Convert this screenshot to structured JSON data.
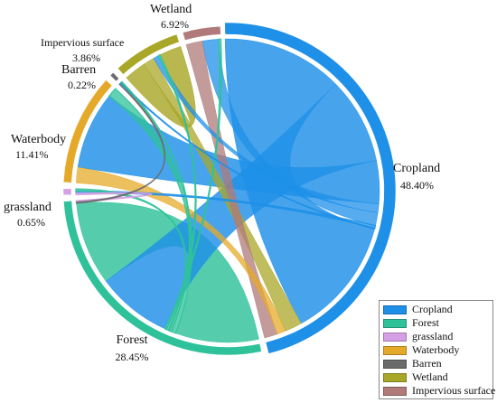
{
  "chart_data": {
    "type": "chord",
    "categories": [
      "Cropland",
      "Forest",
      "grassland",
      "Waterbody",
      "Barren",
      "Wetland",
      "Impervious surface"
    ],
    "shares_percent": [
      48.4,
      28.45,
      0.65,
      11.41,
      0.22,
      6.92,
      3.86
    ],
    "share_labels": [
      "48.40%",
      "28.45%",
      "0.65%",
      "11.41%",
      "0.22%",
      "6.92%",
      "3.86%"
    ],
    "colors": {
      "Cropland": "#1e90e8",
      "Forest": "#2fc29a",
      "grassland": "#d6a0e6",
      "Waterbody": "#e5a92a",
      "Barren": "#6b6b6b",
      "Wetland": "#a9a728",
      "Impervious surface": "#b07a7a"
    },
    "legend": {
      "position": "bottom-right",
      "entries": [
        "Cropland",
        "Forest",
        "grassland",
        "Waterbody",
        "Barren",
        "Wetland",
        "Impervious surface"
      ]
    },
    "flows": [
      {
        "from": "Cropland",
        "to": "Cropland",
        "weight": 14
      },
      {
        "from": "Cropland",
        "to": "Forest",
        "weight": 10
      },
      {
        "from": "Cropland",
        "to": "Waterbody",
        "weight": 5
      },
      {
        "from": "Cropland",
        "to": "Wetland",
        "weight": 1
      },
      {
        "from": "Cropland",
        "to": "Impervious surface",
        "weight": 1.5
      },
      {
        "from": "Cropland",
        "to": "grassland",
        "weight": 0.3
      },
      {
        "from": "Cropland",
        "to": "Barren",
        "weight": 0.1
      },
      {
        "from": "Forest",
        "to": "Forest",
        "weight": 11
      },
      {
        "from": "Forest",
        "to": "Waterbody",
        "weight": 0.6
      },
      {
        "from": "Forest",
        "to": "grassland",
        "weight": 0.3
      },
      {
        "from": "Forest",
        "to": "Barren",
        "weight": 0.1
      },
      {
        "from": "Forest",
        "to": "Wetland",
        "weight": 0.3
      },
      {
        "from": "Forest",
        "to": "Impervious surface",
        "weight": 0.2
      },
      {
        "from": "Wetland",
        "to": "Wetland",
        "weight": 4
      },
      {
        "from": "Wetland",
        "to": "Cropland",
        "weight": 2
      },
      {
        "from": "Waterbody",
        "to": "Cropland",
        "weight": 1
      },
      {
        "from": "Impervious surface",
        "to": "Cropland",
        "weight": 1.5
      },
      {
        "from": "Barren",
        "to": "Forest",
        "weight": 0.15
      },
      {
        "from": "grassland",
        "to": "Forest",
        "weight": 0.2
      }
    ]
  }
}
